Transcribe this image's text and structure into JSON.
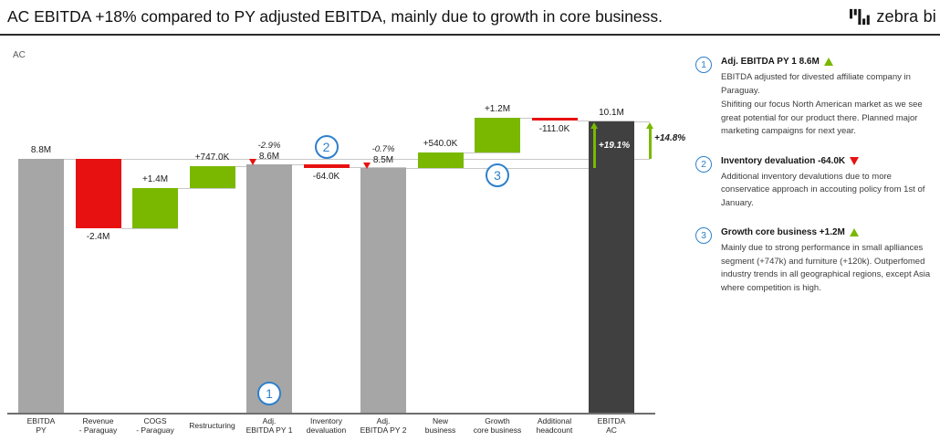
{
  "header": {
    "title": "AC EBITDA +18% compared to PY adjusted EBITDA, mainly due to growth in core business.",
    "brand": "zebra bi"
  },
  "colors": {
    "increase": "#7ab800",
    "decrease": "#e81111",
    "total": "#a6a6a6",
    "total_emphasis": "#404040",
    "marker_blue": "#2e80cc",
    "reference_line": "#c8c8c8",
    "axis": "#6e6e6e"
  },
  "chart_data": {
    "type": "bar",
    "subtype": "waterfall",
    "series_label": "AC",
    "unit": "millions",
    "ylim": [
      0,
      10.24
    ],
    "grid": false,
    "bars": [
      {
        "name": "EBITDA PY",
        "axis_label": [
          "EBITDA",
          "PY"
        ],
        "role": "total",
        "from": 0,
        "to": 8.8,
        "label": "8.8M",
        "label_pos": "above"
      },
      {
        "name": "Revenue - Paraguay",
        "axis_label": [
          "Revenue",
          "- Paraguay"
        ],
        "role": "decrease",
        "from": 8.8,
        "to": 6.4,
        "label": "-2.4M",
        "label_pos": "below"
      },
      {
        "name": "COGS - Paraguay",
        "axis_label": [
          "COGS",
          "- Paraguay"
        ],
        "role": "increase",
        "from": 6.4,
        "to": 7.8,
        "label": "+1.4M",
        "label_pos": "above"
      },
      {
        "name": "Restructuring",
        "axis_label": [
          "Restructuring"
        ],
        "role": "increase",
        "from": 7.8,
        "to": 8.55,
        "label": "+747.0K",
        "label_pos": "above"
      },
      {
        "name": "Adj. EBITDA PY 1",
        "axis_label": [
          "Adj.",
          "EBITDA PY 1"
        ],
        "role": "total",
        "from": 0,
        "to": 8.6,
        "label": "8.6M",
        "label_pos": "above",
        "variance_label": "-2.9%",
        "variance_dir": "down"
      },
      {
        "name": "Inventory devaluation",
        "axis_label": [
          "Inventory",
          "devaluation"
        ],
        "role": "decrease",
        "from": 8.6,
        "to": 8.53,
        "label": "-64.0K",
        "label_pos": "below"
      },
      {
        "name": "Adj. EBITDA PY 2",
        "axis_label": [
          "Adj.",
          "EBITDA PY 2"
        ],
        "role": "total",
        "from": 0,
        "to": 8.5,
        "label": "8.5M",
        "label_pos": "above",
        "variance_label": "-0.7%",
        "variance_dir": "down"
      },
      {
        "name": "New business",
        "axis_label": [
          "New",
          "business"
        ],
        "role": "increase",
        "from": 8.5,
        "to": 9.04,
        "label": "+540.0K",
        "label_pos": "above"
      },
      {
        "name": "Growth core business",
        "axis_label": [
          "Growth",
          "core business"
        ],
        "role": "increase",
        "from": 9.04,
        "to": 10.24,
        "label": "+1.2M",
        "label_pos": "above"
      },
      {
        "name": "Additional headcount",
        "axis_label": [
          "Additional",
          "headcount"
        ],
        "role": "decrease",
        "from": 10.24,
        "to": 10.13,
        "label": "-111.0K",
        "label_pos": "below"
      },
      {
        "name": "EBITDA AC",
        "axis_label": [
          "EBITDA",
          "AC"
        ],
        "role": "total_emphasis",
        "from": 0,
        "to": 10.1,
        "label": "10.1M",
        "label_pos": "above",
        "inside_variance": "+19.1%"
      }
    ],
    "reference_levels": [
      8.8,
      8.5
    ],
    "variance_arrows": [
      {
        "label": "+19.1%",
        "baseline_value": 8.5,
        "target_value": 10.1,
        "placement": "inside_last_bar"
      },
      {
        "label": "+14.8%",
        "baseline_value": 8.8,
        "target_value": 10.1,
        "placement": "right_of_last_bar"
      }
    ],
    "markers": [
      {
        "number": "1",
        "bar": "Adj. EBITDA PY 1"
      },
      {
        "number": "2",
        "bar": "Inventory devaluation"
      },
      {
        "number": "3",
        "bar": "Growth core business"
      }
    ]
  },
  "annotations": [
    {
      "number": "1",
      "title": "Adj. EBITDA PY 1 8.6M",
      "trend": "up",
      "paragraphs": [
        "EBITDA adjusted for divested affiliate company in Paraguay.",
        "Shifiting our focus North American market as we see great potential for our product there. Planned major marketing campaigns for next year."
      ]
    },
    {
      "number": "2",
      "title": "Inventory devaluation -64.0K",
      "trend": "down",
      "paragraphs": [
        "Additional inventory devalutions due to more conservatice approach in accouting policy from 1st of January."
      ]
    },
    {
      "number": "3",
      "title": "Growth core business +1.2M",
      "trend": "up",
      "paragraphs": [
        "Mainly due to strong performance in small aplliances segment (+747k) and furniture (+120k). Outperfomed industry trends in all geographical regions, except Asia where competition is high."
      ]
    }
  ]
}
